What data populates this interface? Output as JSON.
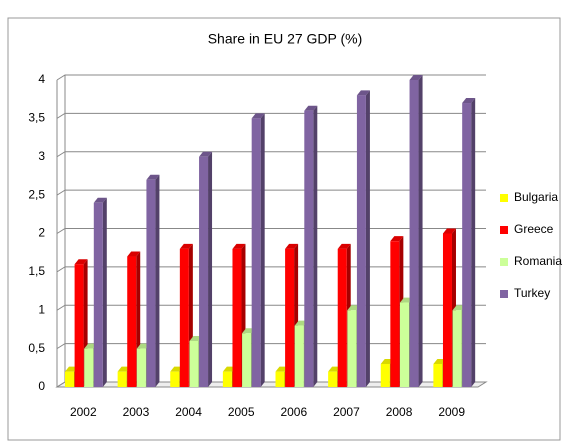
{
  "chart_data": {
    "type": "bar",
    "title": "Share in EU 27 GDP (%)",
    "categories": [
      "2002",
      "2003",
      "2004",
      "2005",
      "2006",
      "2007",
      "2008",
      "2009"
    ],
    "series": [
      {
        "name": "Bulgaria",
        "color": "#ffff00",
        "values": [
          0.2,
          0.2,
          0.2,
          0.2,
          0.2,
          0.2,
          0.3,
          0.3
        ]
      },
      {
        "name": "Greece",
        "color": "#ff0000",
        "values": [
          1.6,
          1.7,
          1.8,
          1.8,
          1.8,
          1.8,
          1.9,
          2.0
        ]
      },
      {
        "name": "Romania",
        "color": "#ccff99",
        "values": [
          0.5,
          0.5,
          0.6,
          0.7,
          0.8,
          1.0,
          1.1,
          1.0
        ]
      },
      {
        "name": "Turkey",
        "color": "#8064a2",
        "values": [
          2.4,
          2.7,
          3.0,
          3.5,
          3.6,
          3.8,
          4.0,
          3.7
        ]
      }
    ],
    "ylim": [
      0,
      4
    ],
    "yticks": [
      0,
      {
        "value": 0.5,
        "label": "0,5"
      },
      1,
      {
        "value": 1.5,
        "label": "1,5"
      },
      2,
      {
        "value": 2.5,
        "label": "2,5"
      },
      3,
      {
        "value": 3.5,
        "label": "3,5"
      },
      4
    ],
    "grid": true,
    "legend": "right"
  }
}
